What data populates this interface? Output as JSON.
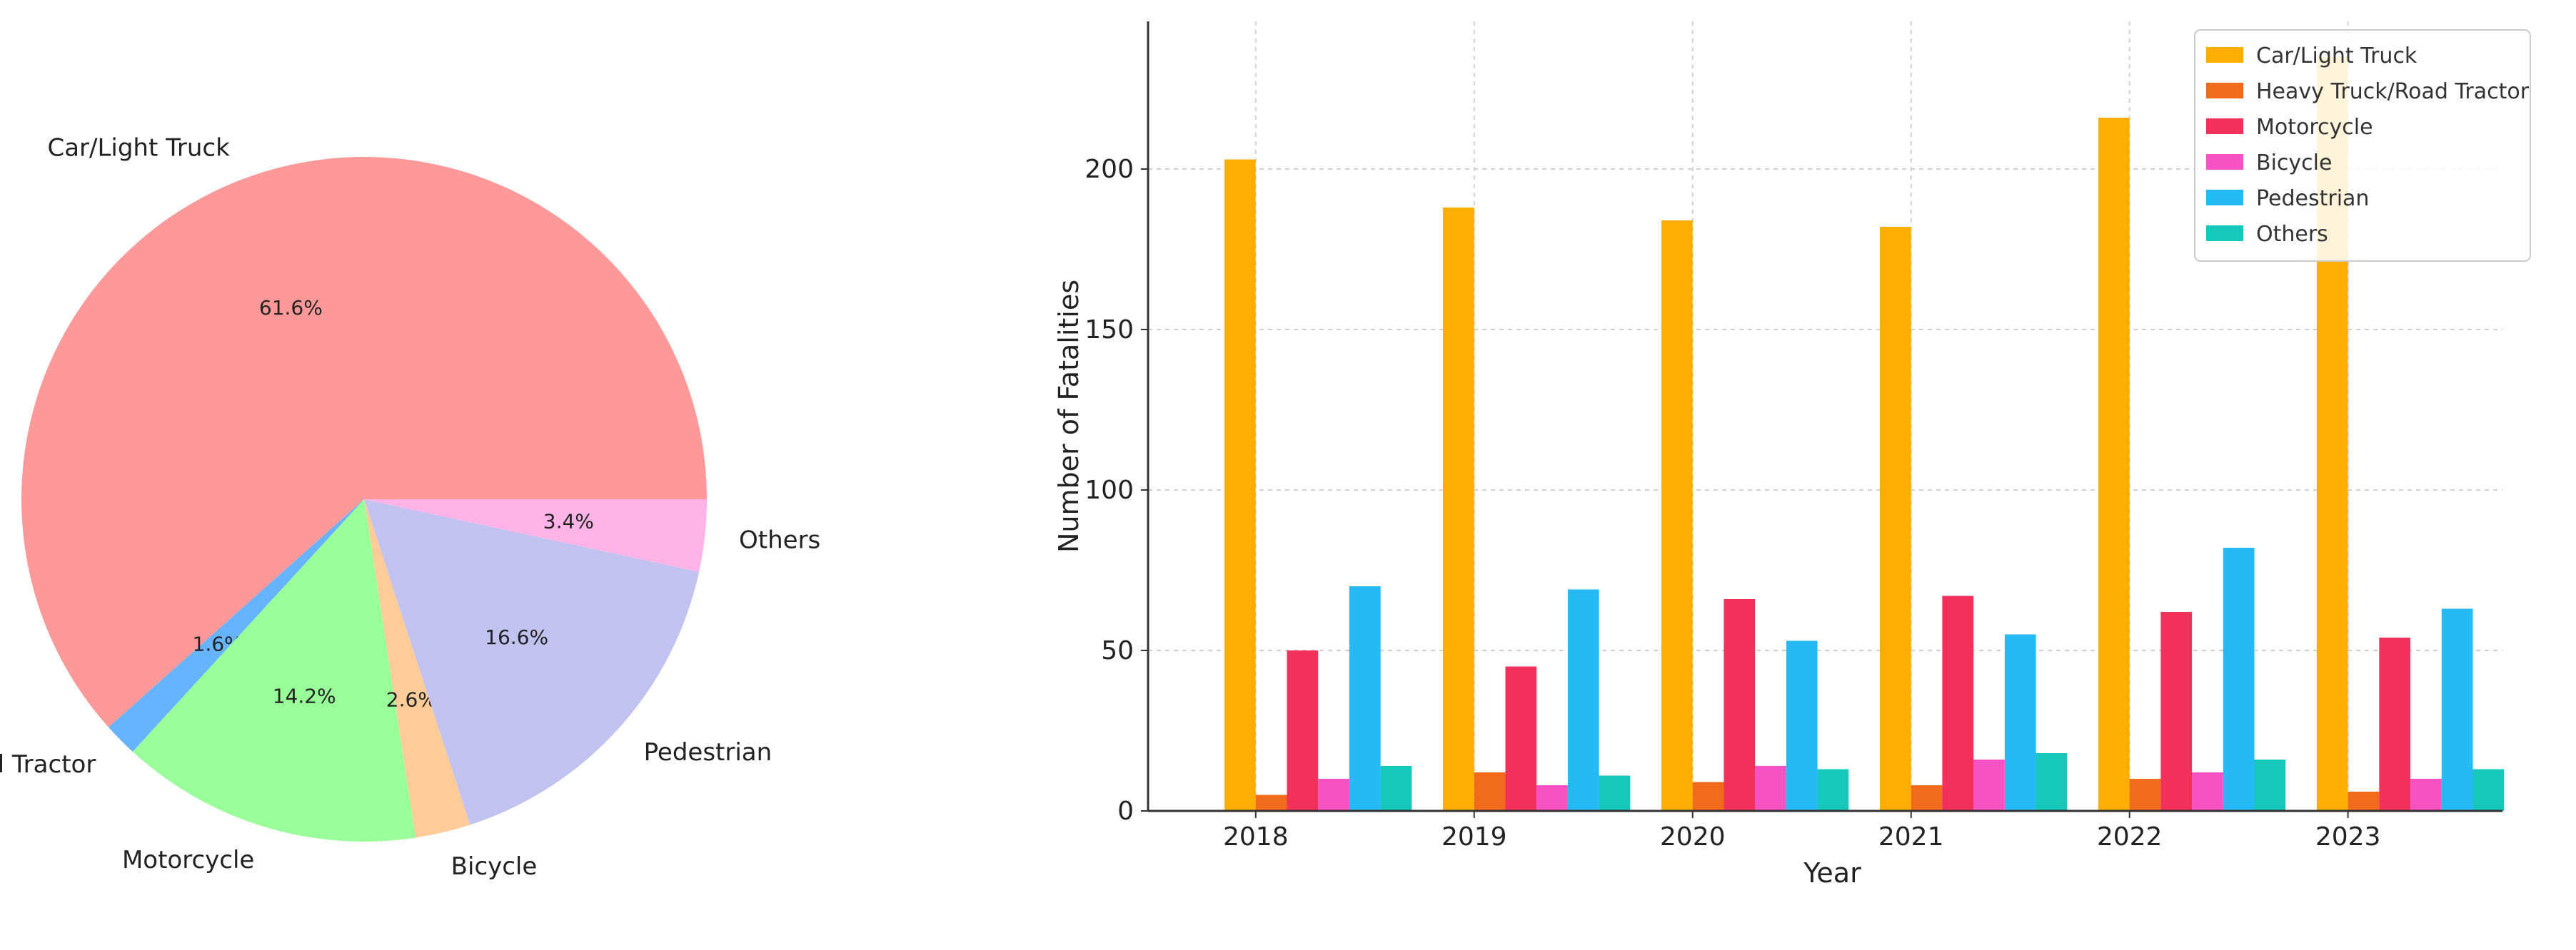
{
  "chart_data": [
    {
      "type": "pie",
      "labels": [
        "Car/Light Truck",
        "Heavy Truck/Road Tractor",
        "Motorcycle",
        "Bicycle",
        "Pedestrian",
        "Others"
      ],
      "values": [
        61.6,
        1.6,
        14.2,
        2.6,
        16.6,
        3.4
      ],
      "pct_labels": [
        "61.6%",
        "1.6%",
        "14.2%",
        "2.6%",
        "16.6%",
        "3.4%"
      ],
      "colors": [
        "#ff9999",
        "#66b3ff",
        "#99ff99",
        "#ffcc99",
        "#c2c2f0",
        "#ffb3e6"
      ],
      "start_angle_deg": 0,
      "direction": "counterclockwise"
    },
    {
      "type": "bar",
      "categories": [
        "2018",
        "2019",
        "2020",
        "2021",
        "2022",
        "2023"
      ],
      "series": [
        {
          "name": "Car/Light Truck",
          "color": "#ffad00",
          "values": [
            203,
            188,
            184,
            182,
            216,
            235
          ]
        },
        {
          "name": "Heavy Truck/Road Tractor",
          "color": "#f26a1b",
          "values": [
            5,
            12,
            9,
            8,
            10,
            6
          ]
        },
        {
          "name": "Motorcycle",
          "color": "#f2315a",
          "values": [
            50,
            45,
            66,
            67,
            62,
            54
          ]
        },
        {
          "name": "Bicycle",
          "color": "#f751c4",
          "values": [
            10,
            8,
            14,
            16,
            12,
            10
          ]
        },
        {
          "name": "Pedestrian",
          "color": "#25b9f5",
          "values": [
            70,
            69,
            53,
            55,
            82,
            63
          ]
        },
        {
          "name": "Others",
          "color": "#14c9b9",
          "values": [
            14,
            11,
            13,
            18,
            16,
            13
          ]
        }
      ],
      "xlabel": "Year",
      "ylabel": "Number of Fatalities",
      "ylim": [
        0,
        246
      ],
      "yticks": [
        "0",
        "50",
        "100",
        "150",
        "200"
      ],
      "grid": true,
      "legend_position": "top-right"
    }
  ]
}
